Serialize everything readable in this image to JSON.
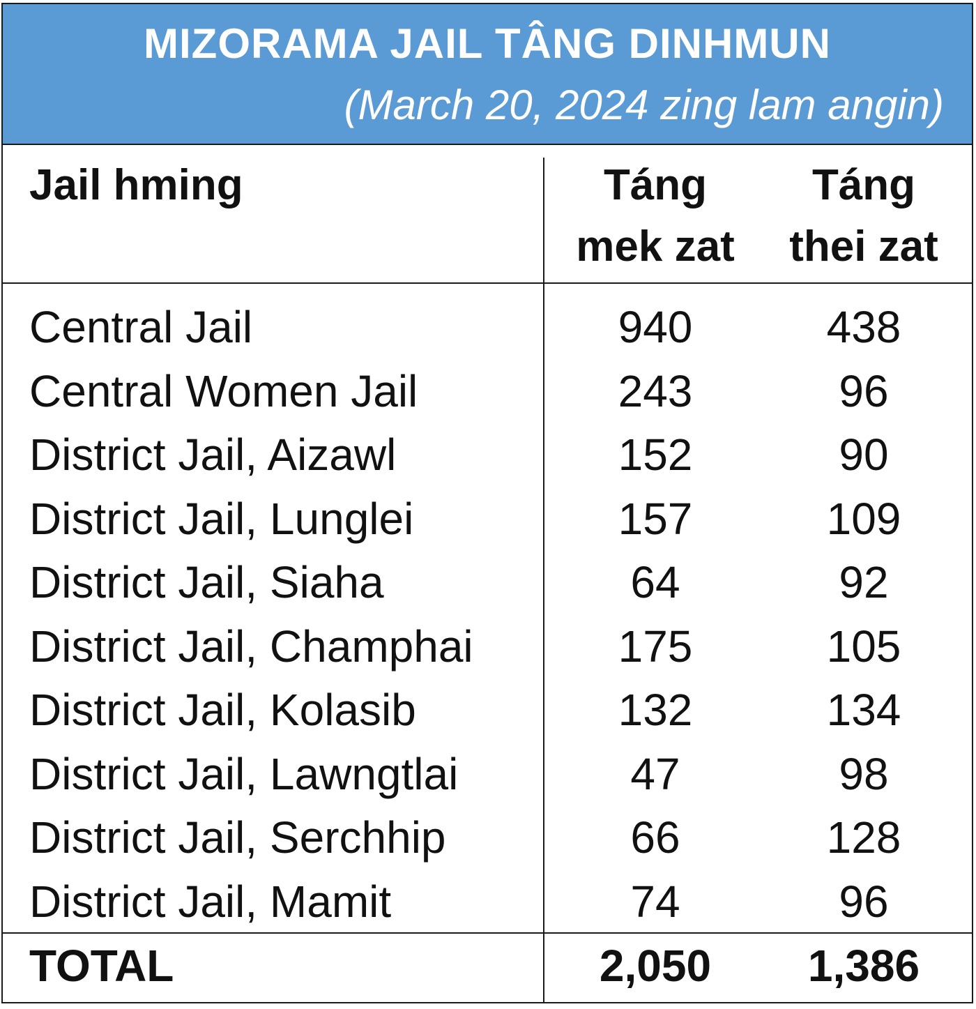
{
  "banner": {
    "title": "MIZORAMA JAIL TÂNG DINHMUN",
    "subtitle": "(March 20, 2024 zing lam angin)"
  },
  "table": {
    "headers": {
      "name": "Jail hming",
      "capacity_line1": "Táng",
      "capacity_line2": "mek zat",
      "inmates_line1": "Táng",
      "inmates_line2": "thei zat"
    },
    "rows": [
      {
        "name": "Central Jail",
        "capacity": "940",
        "inmates": "438"
      },
      {
        "name": "Central Women Jail",
        "capacity": "243",
        "inmates": "96"
      },
      {
        "name": "District Jail, Aizawl",
        "capacity": "152",
        "inmates": "90"
      },
      {
        "name": "District Jail, Lunglei",
        "capacity": "157",
        "inmates": "109"
      },
      {
        "name": "District Jail, Siaha",
        "capacity": "64",
        "inmates": "92"
      },
      {
        "name": "District Jail, Champhai",
        "capacity": "175",
        "inmates": "105"
      },
      {
        "name": "District Jail, Kolasib",
        "capacity": "132",
        "inmates": "134"
      },
      {
        "name": "District Jail, Lawngtlai",
        "capacity": "47",
        "inmates": "98"
      },
      {
        "name": "District Jail, Serchhip",
        "capacity": "66",
        "inmates": "128"
      },
      {
        "name": "District Jail, Mamit",
        "capacity": "74",
        "inmates": "96"
      }
    ],
    "total": {
      "name": "TOTAL",
      "capacity": "2,050",
      "inmates": "1,386"
    }
  },
  "colors": {
    "banner": "#5b9bd5",
    "banner_text": "#ffffff",
    "text": "#111111",
    "rule": "#1a1a1a"
  }
}
